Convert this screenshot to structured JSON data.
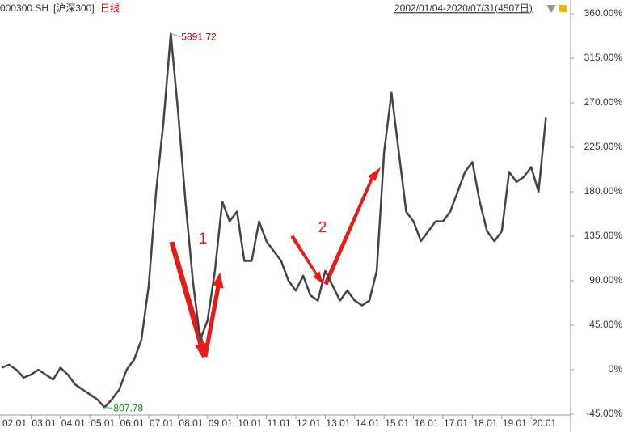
{
  "chart_data": {
    "type": "line",
    "code": "000300.SH",
    "name": "[沪深300]",
    "period": "日线",
    "range": "2002/01/04-2020/07/31(4507日)",
    "categories": [
      "02.01",
      null,
      null,
      null,
      "03.01",
      null,
      null,
      null,
      "04.01",
      null,
      null,
      null,
      "05.01",
      null,
      null,
      null,
      "06.01",
      null,
      null,
      null,
      "07.01",
      null,
      null,
      null,
      "08.01",
      null,
      null,
      null,
      "09.01",
      null,
      null,
      null,
      "10.01",
      null,
      null,
      null,
      "11.01",
      null,
      null,
      null,
      "12.01",
      null,
      null,
      null,
      "13.01",
      null,
      null,
      null,
      "14.01",
      null,
      null,
      null,
      "15.01",
      null,
      null,
      null,
      "16.01",
      null,
      null,
      null,
      "17.01",
      null,
      null,
      null,
      "18.01",
      null,
      null,
      null,
      "19.01",
      null,
      null,
      null,
      "20.01",
      null,
      null
    ],
    "series": [
      {
        "color": "#444444",
        "values": [
          2,
          5,
          0,
          -8,
          -5,
          0,
          -5,
          -10,
          2,
          -5,
          -15,
          -20,
          -25,
          -30,
          -38,
          -30,
          -20,
          0,
          10,
          30,
          85,
          180,
          250,
          340,
          260,
          170,
          90,
          30,
          50,
          100,
          170,
          150,
          160,
          110,
          110,
          150,
          130,
          120,
          110,
          90,
          80,
          95,
          75,
          70,
          100,
          85,
          70,
          80,
          70,
          65,
          70,
          100,
          220,
          280,
          220,
          160,
          150,
          130,
          140,
          150,
          150,
          160,
          180,
          200,
          210,
          170,
          140,
          130,
          140,
          200,
          190,
          195,
          205,
          180,
          255
        ]
      }
    ],
    "ylim": [
      -45,
      360
    ],
    "yticks": [
      {
        "value": 360,
        "label": "360.00%"
      },
      {
        "value": 315,
        "label": "315.00%"
      },
      {
        "value": 270,
        "label": "270.00%"
      },
      {
        "value": 225,
        "label": "225.00%"
      },
      {
        "value": 180,
        "label": "180.00%"
      },
      {
        "value": 135,
        "label": "135.00%"
      },
      {
        "value": 90,
        "label": "90.00%"
      },
      {
        "value": 45,
        "label": "45.00%"
      },
      {
        "value": 0,
        "label": "0%"
      },
      {
        "value": -45,
        "label": "-45.00%"
      }
    ],
    "max_label": 5891.72,
    "min_label": 807.78,
    "annotations": [
      "1",
      "2"
    ]
  }
}
